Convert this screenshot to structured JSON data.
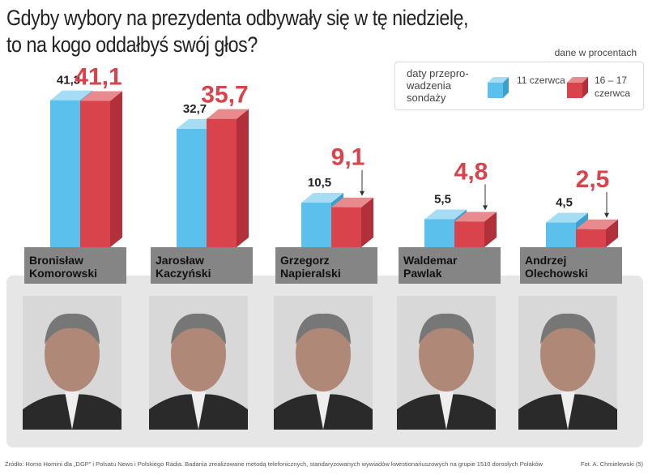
{
  "title_line1": "Gdyby wybory na prezydenta odbywały się w tę niedzielę,",
  "title_line2": "to na kogo oddałbyś swój głos?",
  "unit_note": "dane w procentach",
  "legend": {
    "title": "daty przepro-wadzenia sondaży",
    "series1": "11 czerwca",
    "series2": "16 – 17 czerwca"
  },
  "colors": {
    "series1": "#5bc0eb",
    "series2": "#d9434b",
    "label_red": "#d9434b"
  },
  "chart_data": {
    "type": "bar",
    "title": "Gdyby wybory na prezydenta odbywały się w tę niedzielę, to na kogo oddałbyś swój głos?",
    "categories": [
      "Bronisław Komorowski",
      "Jarosław Kaczyński",
      "Grzegorz Napieralski",
      "Waldemar Pawlak",
      "Andrzej Olechowski"
    ],
    "category_lines": [
      [
        "Bronisław",
        "Komorowski"
      ],
      [
        "Jarosław",
        "Kaczyński"
      ],
      [
        "Grzegorz",
        "Napieralski"
      ],
      [
        "Waldemar",
        "Pawlak"
      ],
      [
        "Andrzej",
        "Olechowski"
      ]
    ],
    "series": [
      {
        "name": "11 czerwca",
        "values": [
          41.3,
          32.7,
          10.5,
          5.5,
          4.5
        ],
        "labels": [
          "41,3",
          "32,7",
          "10,5",
          "5,5",
          "4,5"
        ]
      },
      {
        "name": "16 – 17 czerwca",
        "values": [
          41.1,
          35.7,
          9.1,
          4.8,
          2.5
        ],
        "labels": [
          "41,1",
          "35,7",
          "9,1",
          "4,8",
          "2,5"
        ]
      }
    ],
    "ylabel": "%",
    "ylim": [
      0,
      45
    ]
  },
  "source": "Źródło: Homo Homini dla „DGP” i Polsatu News i Polskiego Radia. Badania zrealizowane metodą telefonicznych, standaryzowanych wywiadów kwestionariuszowych na grupie 1510 dorosłych Polaków",
  "credit": "Fot. A. Chmielewski (5)"
}
